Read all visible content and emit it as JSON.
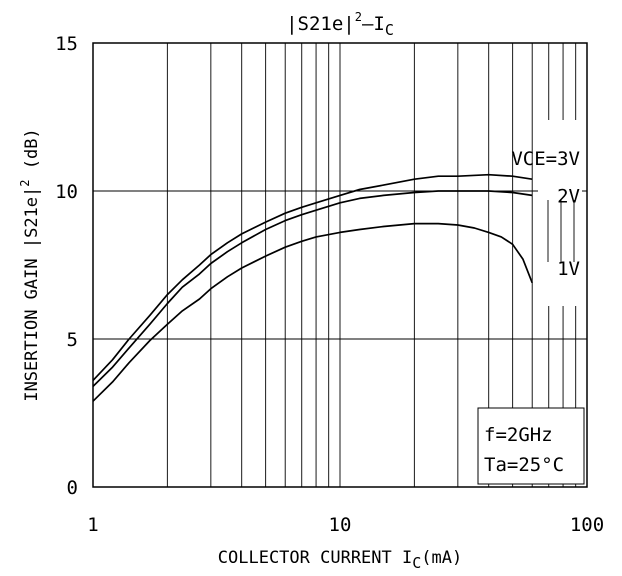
{
  "chart_data": {
    "type": "line",
    "title": {
      "main": "|S21e|",
      "sup": "2",
      "mid": "–I",
      "sub": "C"
    },
    "xlabel": {
      "main": "COLLECTOR CURRENT I",
      "sub": "C",
      "end": "(mA)"
    },
    "ylabel": {
      "main": "INSERTION GAIN |S21e|",
      "sup": "2",
      "end": " (dB)"
    },
    "xscale": "log",
    "xlim": [
      1,
      100
    ],
    "ylim": [
      0,
      15
    ],
    "grid": "log-decades-x, y-major",
    "x_tick_labels": [
      "1",
      "10",
      "100"
    ],
    "y_tick_labels": [
      "0",
      "5",
      "10",
      "15"
    ],
    "x_ticks": [
      1,
      10,
      100
    ],
    "y_ticks": [
      0,
      5,
      10,
      15
    ],
    "y_grid": [
      5,
      10
    ],
    "series": [
      {
        "name": "VCE=3V",
        "values": [
          [
            1,
            3.6
          ],
          [
            1.2,
            4.3
          ],
          [
            1.4,
            5.0
          ],
          [
            1.7,
            5.8
          ],
          [
            2,
            6.5
          ],
          [
            2.3,
            7.0
          ],
          [
            2.7,
            7.5
          ],
          [
            3,
            7.85
          ],
          [
            3.5,
            8.25
          ],
          [
            4,
            8.55
          ],
          [
            5,
            8.95
          ],
          [
            6,
            9.25
          ],
          [
            7,
            9.45
          ],
          [
            8,
            9.6
          ],
          [
            10,
            9.85
          ],
          [
            12,
            10.05
          ],
          [
            15,
            10.2
          ],
          [
            20,
            10.4
          ],
          [
            25,
            10.5
          ],
          [
            30,
            10.5
          ],
          [
            40,
            10.55
          ],
          [
            50,
            10.5
          ],
          [
            60,
            10.4
          ]
        ]
      },
      {
        "name": "2V",
        "values": [
          [
            1,
            3.4
          ],
          [
            1.2,
            4.05
          ],
          [
            1.4,
            4.7
          ],
          [
            1.7,
            5.5
          ],
          [
            2,
            6.2
          ],
          [
            2.3,
            6.75
          ],
          [
            2.7,
            7.2
          ],
          [
            3,
            7.55
          ],
          [
            3.5,
            7.95
          ],
          [
            4,
            8.25
          ],
          [
            5,
            8.7
          ],
          [
            6,
            9.0
          ],
          [
            7,
            9.2
          ],
          [
            8,
            9.35
          ],
          [
            10,
            9.6
          ],
          [
            12,
            9.75
          ],
          [
            15,
            9.85
          ],
          [
            20,
            9.95
          ],
          [
            25,
            10.0
          ],
          [
            30,
            10.0
          ],
          [
            40,
            10.0
          ],
          [
            50,
            9.95
          ],
          [
            60,
            9.85
          ]
        ]
      },
      {
        "name": "1V",
        "values": [
          [
            1,
            2.9
          ],
          [
            1.2,
            3.55
          ],
          [
            1.4,
            4.2
          ],
          [
            1.7,
            4.95
          ],
          [
            2,
            5.5
          ],
          [
            2.3,
            5.95
          ],
          [
            2.7,
            6.35
          ],
          [
            3,
            6.7
          ],
          [
            3.5,
            7.1
          ],
          [
            4,
            7.4
          ],
          [
            5,
            7.8
          ],
          [
            6,
            8.1
          ],
          [
            7,
            8.3
          ],
          [
            8,
            8.45
          ],
          [
            10,
            8.6
          ],
          [
            12,
            8.7
          ],
          [
            15,
            8.8
          ],
          [
            20,
            8.9
          ],
          [
            25,
            8.9
          ],
          [
            30,
            8.85
          ],
          [
            35,
            8.75
          ],
          [
            40,
            8.6
          ],
          [
            45,
            8.45
          ],
          [
            50,
            8.2
          ],
          [
            55,
            7.7
          ],
          [
            60,
            6.9
          ]
        ]
      }
    ],
    "annotations": [
      "f=2GHz",
      "Ta=25°C"
    ]
  }
}
